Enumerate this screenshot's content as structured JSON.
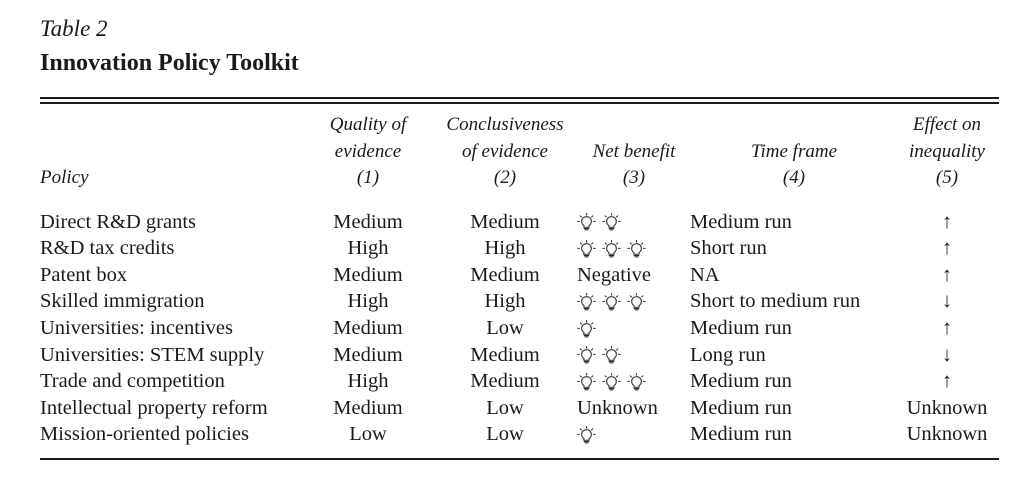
{
  "table_label": "Table 2",
  "table_title": "Innovation Policy Toolkit",
  "headers": [
    {
      "lines": [
        "Policy"
      ]
    },
    {
      "lines": [
        "Quality of",
        "evidence",
        "(1)"
      ]
    },
    {
      "lines": [
        "Conclusiveness",
        "of evidence",
        "(2)"
      ]
    },
    {
      "lines": [
        "Net benefit",
        "(3)"
      ]
    },
    {
      "lines": [
        "Time frame",
        "(4)"
      ]
    },
    {
      "lines": [
        "Effect on",
        "inequality",
        "(5)"
      ]
    }
  ],
  "rows": [
    {
      "policy": "Direct R&D grants",
      "quality": "Medium",
      "conclusiveness": "Medium",
      "net_benefit_bulbs": 2,
      "net_benefit_text": "",
      "time_frame": "Medium run",
      "inequality": "↑"
    },
    {
      "policy": "R&D tax credits",
      "quality": "High",
      "conclusiveness": "High",
      "net_benefit_bulbs": 3,
      "net_benefit_text": "",
      "time_frame": "Short run",
      "inequality": "↑"
    },
    {
      "policy": "Patent box",
      "quality": "Medium",
      "conclusiveness": "Medium",
      "net_benefit_bulbs": 0,
      "net_benefit_text": "Negative",
      "time_frame": "NA",
      "inequality": "↑"
    },
    {
      "policy": "Skilled immigration",
      "quality": "High",
      "conclusiveness": "High",
      "net_benefit_bulbs": 3,
      "net_benefit_text": "",
      "time_frame": "Short to medium run",
      "inequality": "↓"
    },
    {
      "policy": "Universities: incentives",
      "quality": "Medium",
      "conclusiveness": "Low",
      "net_benefit_bulbs": 1,
      "net_benefit_text": "",
      "time_frame": "Medium run",
      "inequality": "↑"
    },
    {
      "policy": "Universities: STEM supply",
      "quality": "Medium",
      "conclusiveness": "Medium",
      "net_benefit_bulbs": 2,
      "net_benefit_text": "",
      "time_frame": "Long run",
      "inequality": "↓"
    },
    {
      "policy": "Trade and competition",
      "quality": "High",
      "conclusiveness": "Medium",
      "net_benefit_bulbs": 3,
      "net_benefit_text": "",
      "time_frame": "Medium run",
      "inequality": "↑"
    },
    {
      "policy": "Intellectual property reform",
      "quality": "Medium",
      "conclusiveness": "Low",
      "net_benefit_bulbs": 0,
      "net_benefit_text": "Unknown",
      "time_frame": "Medium run",
      "inequality": "Unknown"
    },
    {
      "policy": "Mission-oriented policies",
      "quality": "Low",
      "conclusiveness": "Low",
      "net_benefit_bulbs": 1,
      "net_benefit_text": "",
      "time_frame": "Medium run",
      "inequality": "Unknown"
    }
  ],
  "icons": {
    "net_benefit_unit": "lightbulb-icon"
  }
}
